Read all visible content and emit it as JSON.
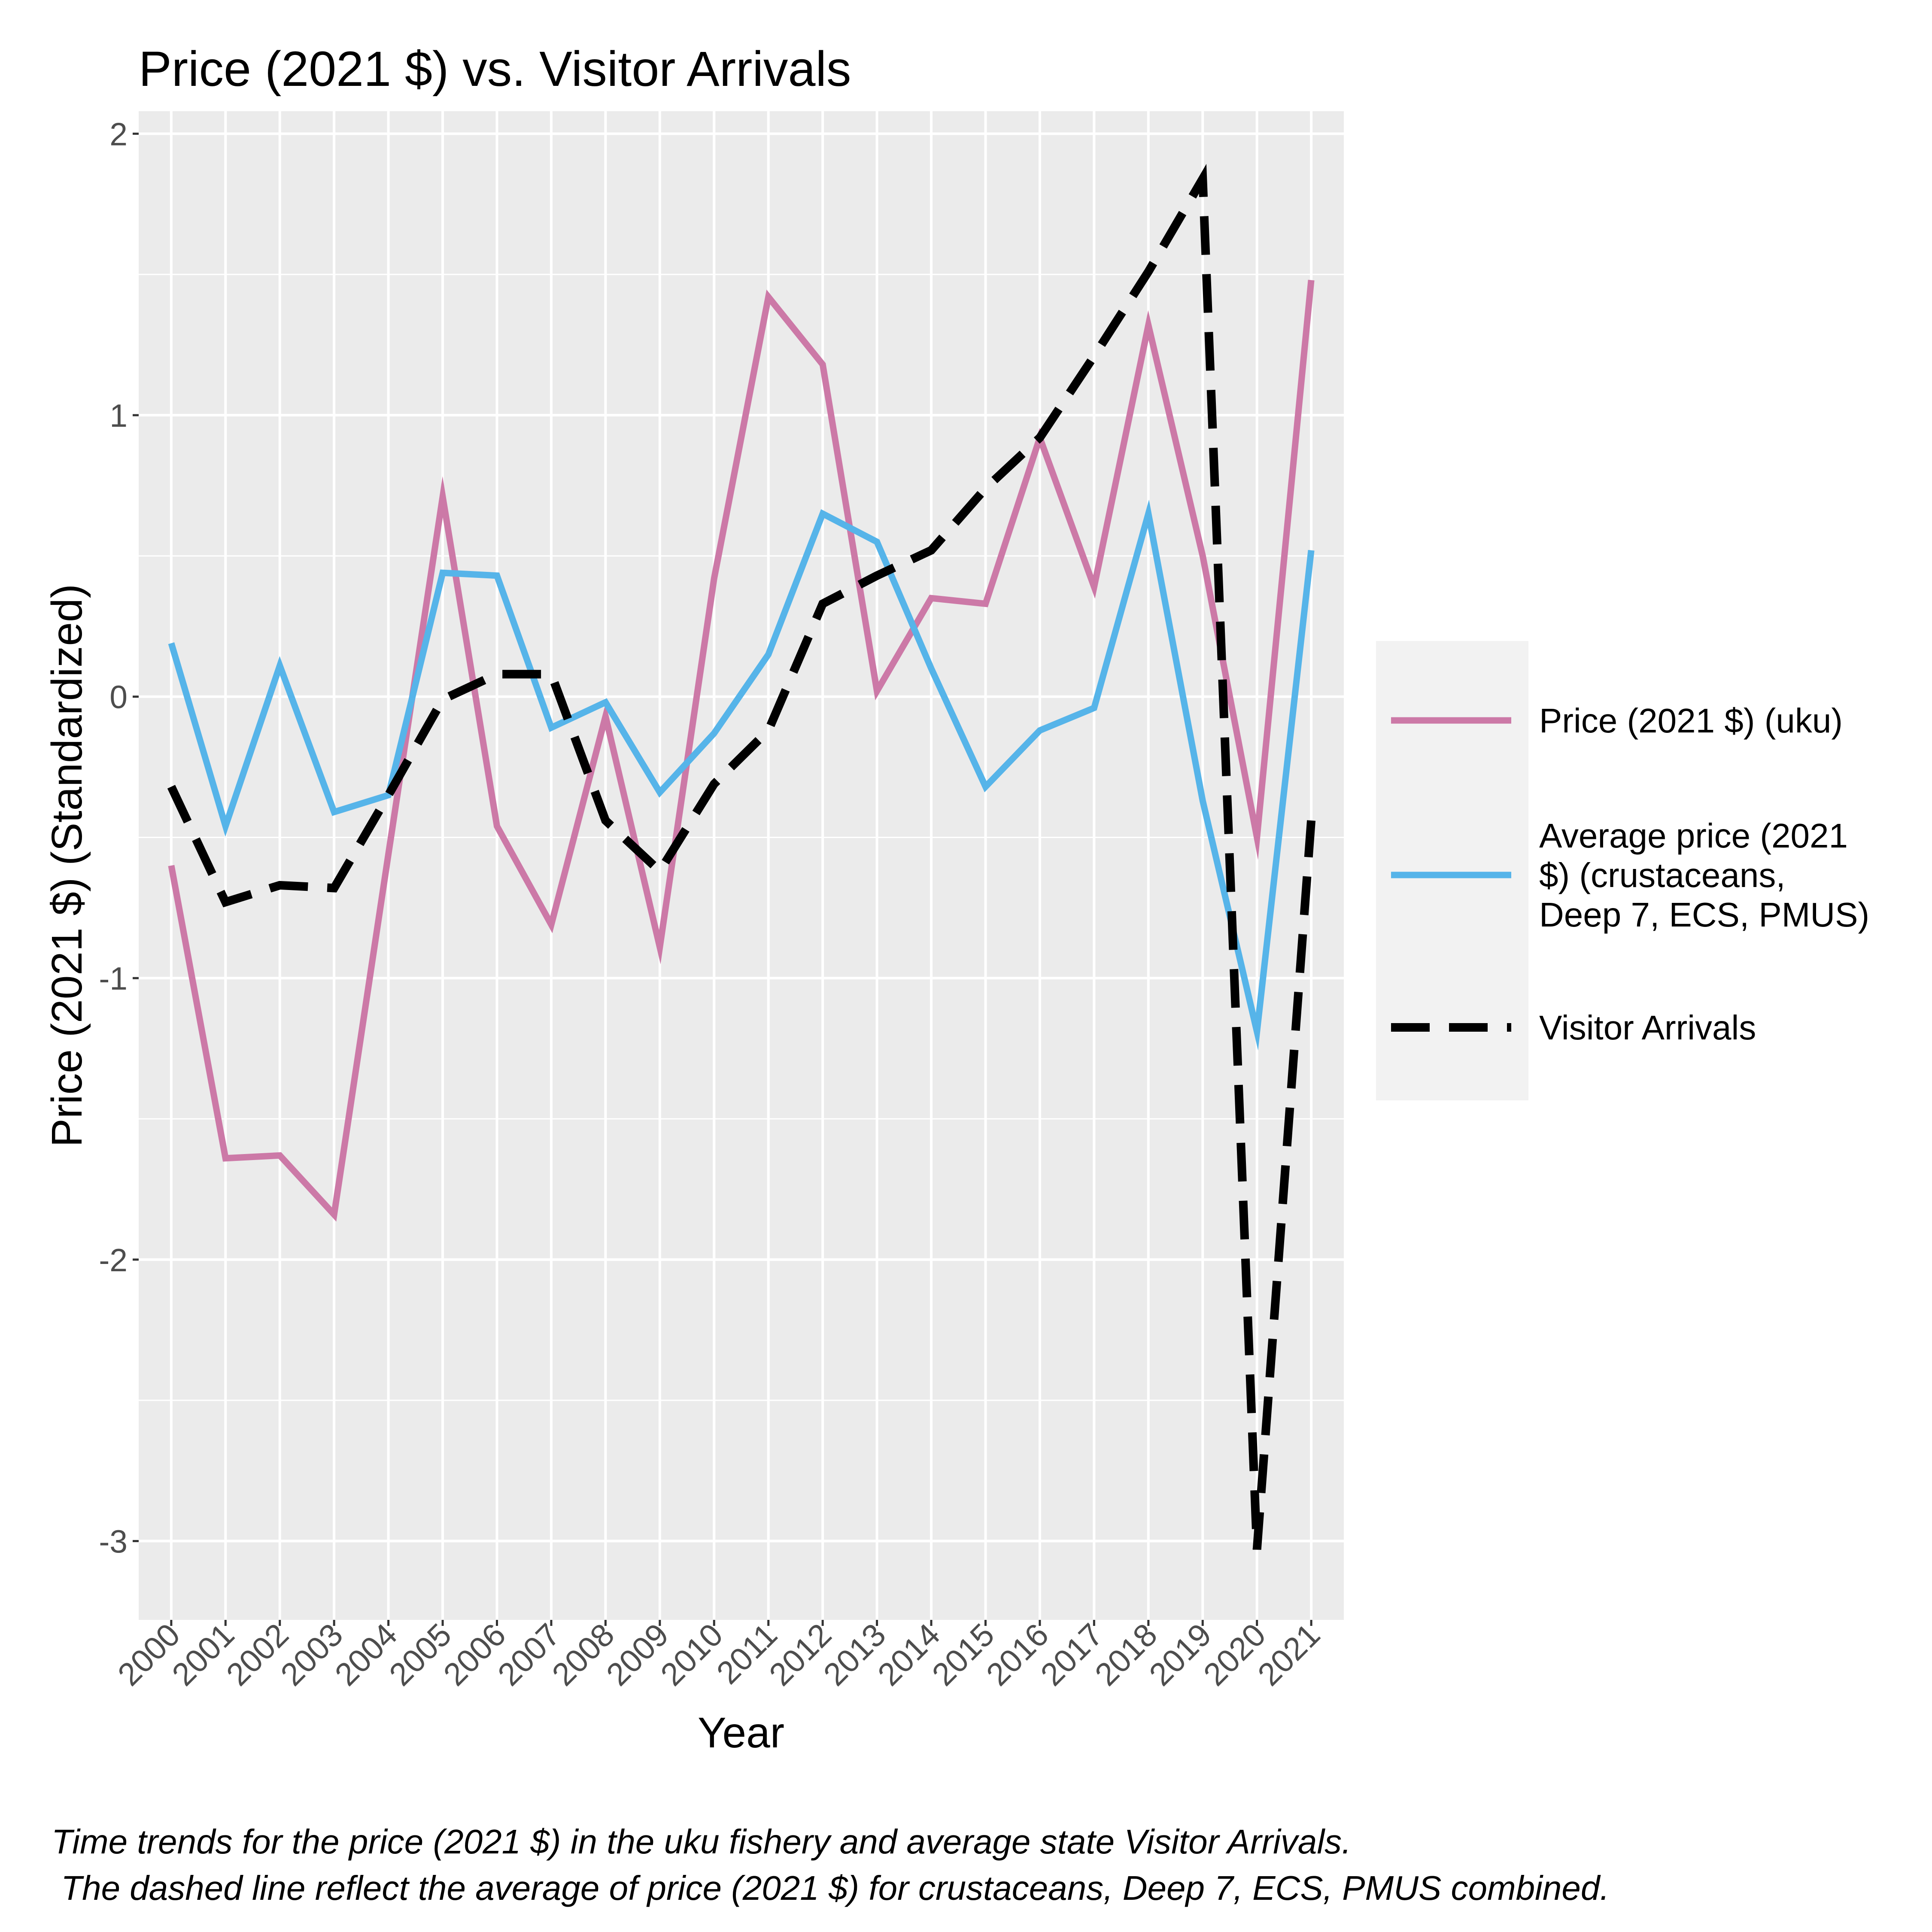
{
  "chart_data": {
    "type": "line",
    "title": "Price (2021 $) vs. Visitor Arrivals",
    "xlabel": "Year",
    "ylabel": "Price (2021 $) (Standardized)",
    "caption_line1": "Time trends for the price (2021 $) in the uku fishery and average state Visitor Arrivals.",
    "caption_line2": " The dashed line reflect the average of price (2021 $) for crustaceans, Deep 7, ECS, PMUS combined.",
    "x": [
      "2000",
      "2001",
      "2002",
      "2003",
      "2004",
      "2005",
      "2006",
      "2007",
      "2008",
      "2009",
      "2010",
      "2011",
      "2012",
      "2013",
      "2014",
      "2015",
      "2016",
      "2017",
      "2018",
      "2019",
      "2020",
      "2021"
    ],
    "y_ticks": [
      2,
      1,
      0,
      -1,
      -2,
      -3
    ],
    "y_tick_labels": [
      "2",
      "1",
      "0",
      "-1",
      "-2",
      "-3"
    ],
    "ylim": [
      -3.28,
      2.08
    ],
    "grid": true,
    "legend_position": "right",
    "series": [
      {
        "name": "Price (2021 $) (uku)",
        "legend_lines": [
          "Price (2021 $) (uku)"
        ],
        "color": "#CC79A7",
        "dashed": false,
        "values": [
          -0.6,
          -1.64,
          -1.63,
          -1.84,
          -0.56,
          0.71,
          -0.46,
          -0.81,
          -0.07,
          -0.89,
          0.42,
          1.42,
          1.18,
          0.02,
          0.35,
          0.33,
          0.92,
          0.39,
          1.32,
          0.5,
          -0.5,
          1.48
        ]
      },
      {
        "name": "Average price (2021 $) (crustaceans, Deep 7, ECS, PMUS)",
        "legend_lines": [
          "Average price (2021",
          "$) (crustaceans,",
          "Deep 7, ECS, PMUS)"
        ],
        "color": "#56B4E9",
        "dashed": false,
        "values": [
          0.19,
          -0.46,
          0.11,
          -0.41,
          -0.35,
          0.44,
          0.43,
          -0.11,
          -0.02,
          -0.34,
          -0.13,
          0.15,
          0.65,
          0.55,
          0.1,
          -0.32,
          -0.12,
          -0.04,
          0.65,
          -0.37,
          -1.19,
          0.52
        ]
      },
      {
        "name": "Visitor Arrivals",
        "legend_lines": [
          "Visitor Arrivals"
        ],
        "color": "#000000",
        "dashed": true,
        "values": [
          -0.32,
          -0.73,
          -0.67,
          -0.68,
          -0.35,
          -0.01,
          0.08,
          0.08,
          -0.44,
          -0.62,
          -0.31,
          -0.12,
          0.33,
          0.43,
          0.52,
          0.74,
          0.92,
          1.21,
          1.51,
          1.84,
          -3.03,
          -0.44
        ]
      }
    ]
  }
}
